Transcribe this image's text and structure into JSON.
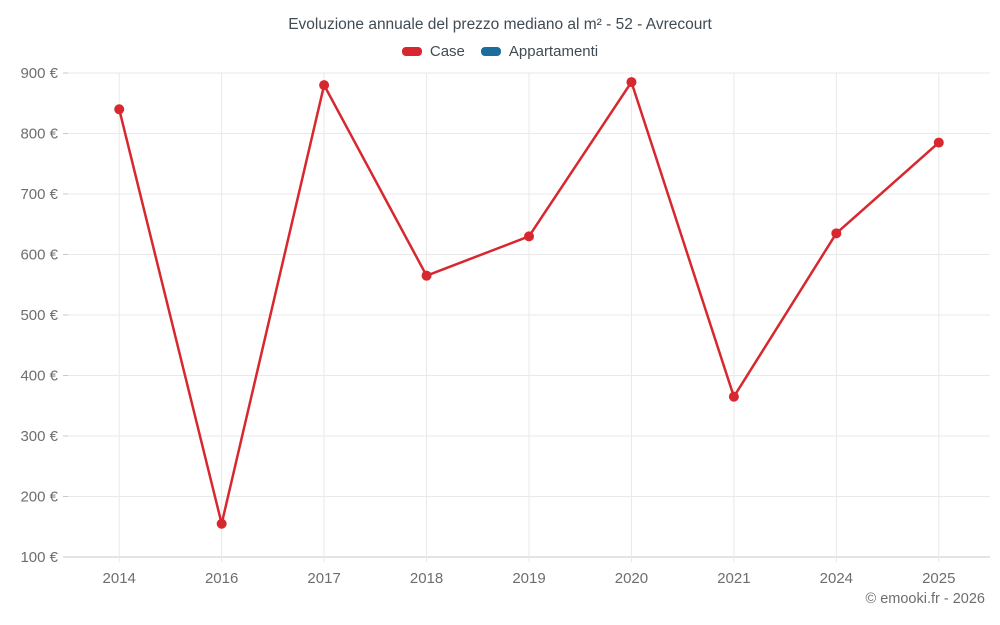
{
  "title": "Evoluzione annuale del prezzo mediano al m² - 52 - Avrecourt",
  "copyright": "© emooki.fr - 2026",
  "legend": [
    {
      "label": "Case",
      "color": "#d7282f"
    },
    {
      "label": "Appartamenti",
      "color": "#1b6d9c"
    }
  ],
  "chart_data": {
    "type": "line",
    "title": "Evoluzione annuale del prezzo mediano al m² - 52 - Avrecourt",
    "categories": [
      "2014",
      "2016",
      "2017",
      "2018",
      "2019",
      "2020",
      "2021",
      "2024",
      "2025"
    ],
    "series": [
      {
        "name": "Case",
        "color": "#d7282f",
        "values": [
          840,
          155,
          880,
          565,
          630,
          885,
          365,
          635,
          785
        ]
      },
      {
        "name": "Appartamenti",
        "color": "#1b6d9c",
        "values": []
      }
    ],
    "xlabel": "",
    "ylabel": "",
    "ylim": [
      100,
      900
    ],
    "yticks": [
      100,
      200,
      300,
      400,
      500,
      600,
      700,
      800,
      900
    ],
    "ytick_labels": [
      "100 €",
      "200 €",
      "300 €",
      "400 €",
      "500 €",
      "600 €",
      "700 €",
      "800 €",
      "900 €"
    ],
    "grid": true,
    "legend_position": "top",
    "marker": "circle"
  },
  "colors": {
    "grid": "#e9e9e9",
    "axis": "#c8c8c8",
    "tick_label": "#6e6e6e",
    "title_text": "#414b53"
  }
}
